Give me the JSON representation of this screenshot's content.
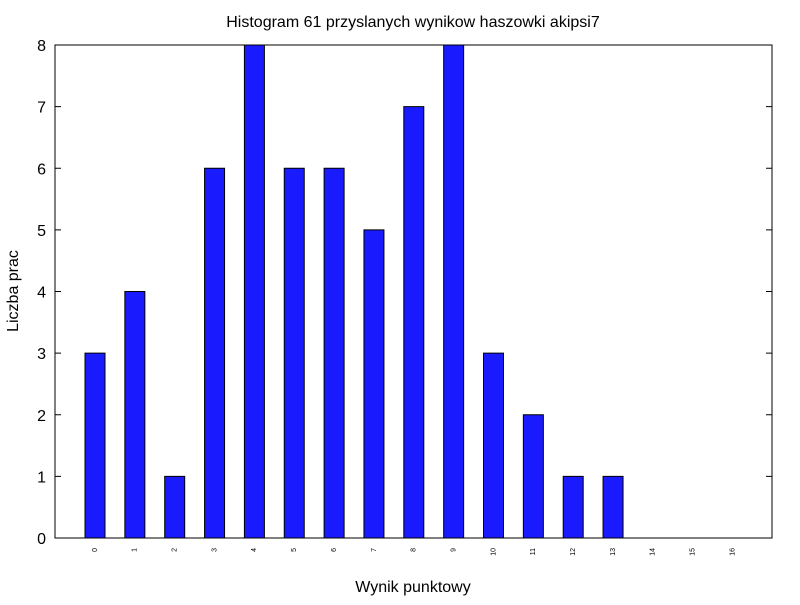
{
  "chart_data": {
    "type": "bar",
    "title": "Histogram 61 przyslanych wynikow haszowki akipsi7",
    "xlabel": "Wynik punktowy",
    "ylabel": "Liczba prac",
    "categories": [
      "0",
      "1",
      "2",
      "3",
      "4",
      "5",
      "6",
      "7",
      "8",
      "9",
      "10",
      "11",
      "12",
      "13",
      "14",
      "15",
      "16"
    ],
    "values": [
      3,
      4,
      1,
      6,
      8,
      6,
      6,
      5,
      7,
      8,
      3,
      2,
      1,
      1,
      0,
      0,
      0
    ],
    "ylim": [
      0,
      8
    ],
    "yticks": [
      "0",
      "1",
      "2",
      "3",
      "4",
      "5",
      "6",
      "7",
      "8"
    ],
    "bar_color": "#1a1aff",
    "bar_edge_color": "#000000",
    "grid": false,
    "legend": "none"
  }
}
